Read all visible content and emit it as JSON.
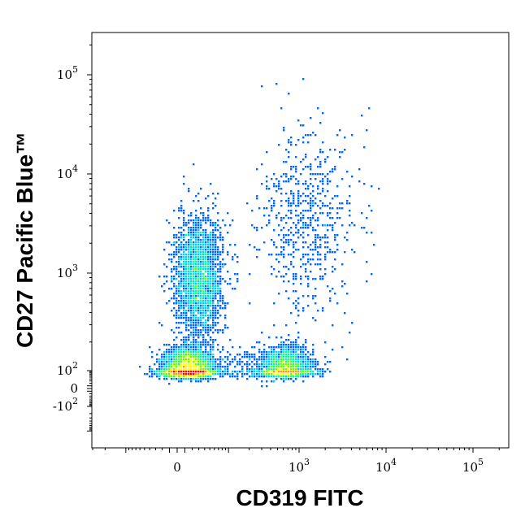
{
  "chart_data": {
    "type": "scatter",
    "subtype": "flow-cytometry-density-dot-plot",
    "title": "",
    "xlabel": "CD319 FITC",
    "ylabel": "CD27 Pacific Blue™",
    "x_scale": "biexponential",
    "y_scale": "biexponential",
    "x_ticks": [
      {
        "value": 0,
        "label": "0"
      },
      {
        "value": 1000,
        "label": "10",
        "exp": "3"
      },
      {
        "value": 10000,
        "label": "10",
        "exp": "4"
      },
      {
        "value": 100000,
        "label": "10",
        "exp": "5"
      }
    ],
    "y_ticks": [
      {
        "value": -100,
        "label": "-10",
        "exp": "2"
      },
      {
        "value": 0,
        "label": "0"
      },
      {
        "value": 100,
        "label": "10",
        "exp": "2"
      },
      {
        "value": 1000,
        "label": "10",
        "exp": "3"
      },
      {
        "value": 10000,
        "label": "10",
        "exp": "4"
      },
      {
        "value": 100000,
        "label": "10",
        "exp": "5"
      }
    ],
    "grid": false,
    "legend": "none",
    "color_scale": [
      "#0000cc",
      "#0066ff",
      "#00ccff",
      "#00ff99",
      "#66ff00",
      "#ffff00",
      "#ff9900",
      "#ff0000"
    ],
    "populations": [
      {
        "name_visible": false,
        "x_center": 15,
        "y_center": 95,
        "x_spread": 0.5,
        "y_spread": 0.35,
        "density": "very high",
        "peak_color": "#ff0000"
      },
      {
        "name_visible": false,
        "x_center": 30,
        "y_center": 900,
        "x_spread": 0.5,
        "y_spread": 0.9,
        "density": "medium",
        "peak_color": "#66ff00"
      },
      {
        "name_visible": false,
        "x_center": 700,
        "y_center": 100,
        "x_spread": 0.5,
        "y_spread": 0.35,
        "density": "high",
        "peak_color": "#66ff00"
      },
      {
        "name_visible": false,
        "x_center": 1200,
        "y_center": 3500,
        "x_spread": 0.9,
        "y_spread": 1.4,
        "density": "sparse",
        "peak_color": "#0000cc"
      }
    ]
  }
}
